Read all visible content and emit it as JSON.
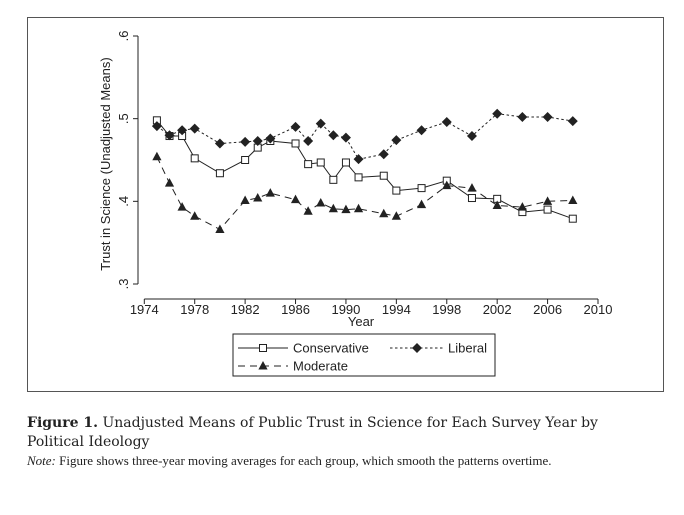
{
  "chart_data": {
    "type": "line",
    "xlabel": "Year",
    "ylabel": "Trust in Science (Unadjusted Means)",
    "xlim": [
      1973.5,
      2010
    ],
    "ylim": [
      0.3,
      0.6
    ],
    "xticks": [
      1974,
      1978,
      1982,
      1986,
      1990,
      1994,
      1998,
      2002,
      2006,
      2010
    ],
    "yticks": [
      0.3,
      0.4,
      0.5,
      0.6
    ],
    "ytick_labels": [
      ".3",
      ".4",
      ".5",
      ".6"
    ],
    "grid": false,
    "legend_position": "bottom",
    "series": [
      {
        "name": "Conservative",
        "line_style": "solid",
        "marker": "hollow-square",
        "x": [
          1975,
          1976,
          1977,
          1978,
          1980,
          1982,
          1983,
          1984,
          1986,
          1987,
          1988,
          1989,
          1990,
          1991,
          1993,
          1994,
          1996,
          1998,
          2000,
          2002,
          2004,
          2006,
          2008
        ],
        "y": [
          0.498,
          0.479,
          0.479,
          0.452,
          0.434,
          0.45,
          0.465,
          0.473,
          0.47,
          0.445,
          0.447,
          0.426,
          0.447,
          0.429,
          0.431,
          0.413,
          0.416,
          0.425,
          0.404,
          0.403,
          0.387,
          0.39,
          0.379
        ]
      },
      {
        "name": "Liberal",
        "line_style": "dotted",
        "marker": "filled-diamond",
        "x": [
          1975,
          1976,
          1977,
          1978,
          1980,
          1982,
          1983,
          1984,
          1986,
          1987,
          1988,
          1989,
          1990,
          1991,
          1993,
          1994,
          1996,
          1998,
          2000,
          2002,
          2004,
          2006,
          2008
        ],
        "y": [
          0.491,
          0.48,
          0.486,
          0.488,
          0.47,
          0.472,
          0.473,
          0.476,
          0.49,
          0.473,
          0.494,
          0.48,
          0.477,
          0.451,
          0.457,
          0.474,
          0.486,
          0.496,
          0.479,
          0.506,
          0.502,
          0.502,
          0.497
        ]
      },
      {
        "name": "Moderate",
        "line_style": "dashed",
        "marker": "filled-triangle",
        "x": [
          1975,
          1976,
          1977,
          1978,
          1980,
          1982,
          1983,
          1984,
          1986,
          1987,
          1988,
          1989,
          1990,
          1991,
          1993,
          1994,
          1996,
          1998,
          2000,
          2002,
          2004,
          2006,
          2008
        ],
        "y": [
          0.454,
          0.422,
          0.393,
          0.382,
          0.366,
          0.401,
          0.404,
          0.41,
          0.402,
          0.388,
          0.398,
          0.391,
          0.39,
          0.391,
          0.385,
          0.382,
          0.396,
          0.419,
          0.416,
          0.395,
          0.393,
          0.4,
          0.401
        ]
      }
    ]
  },
  "caption": {
    "label": "Figure 1.",
    "text": " Unadjusted Means of Public Trust in Science for Each Survey Year by Political Ideology"
  },
  "note": {
    "label": "Note:",
    "text": " Figure shows three-year moving averages for each group, which smooth the patterns overtime."
  },
  "colors": {
    "ink": "#222222",
    "frame": "#555555"
  }
}
